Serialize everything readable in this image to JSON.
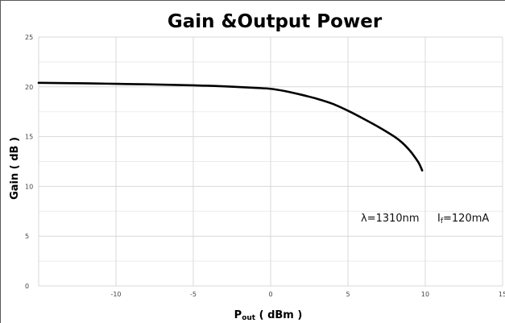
{
  "chart_data": {
    "type": "line",
    "title": "Gain &Output Power",
    "xlabel": {
      "main": "P",
      "sub": "out",
      "rest": " ( dBm )"
    },
    "ylabel": "Gain ( dB )",
    "xlim": [
      -15,
      15
    ],
    "ylim": [
      0,
      25
    ],
    "x_ticks": [
      -10,
      -5,
      0,
      5,
      10,
      15
    ],
    "y_ticks": [
      0,
      5,
      10,
      15,
      20,
      25
    ],
    "grid": true,
    "annotations": {
      "wavelength": "λ=1310nm",
      "current_main": "I",
      "current_sub": "f",
      "current_rest": "=120mA"
    },
    "series": [
      {
        "x": [
          -15,
          -12,
          -10,
          -8,
          -5,
          -3,
          -1,
          0,
          1,
          2,
          3,
          4,
          5,
          6,
          7,
          8,
          8.5,
          9,
          9.3,
          9.6,
          9.8
        ],
        "y": [
          20.4,
          20.35,
          20.3,
          20.25,
          20.15,
          20.05,
          19.9,
          19.8,
          19.55,
          19.2,
          18.8,
          18.3,
          17.6,
          16.8,
          15.95,
          15.0,
          14.4,
          13.6,
          13.0,
          12.3,
          11.6
        ]
      }
    ]
  }
}
